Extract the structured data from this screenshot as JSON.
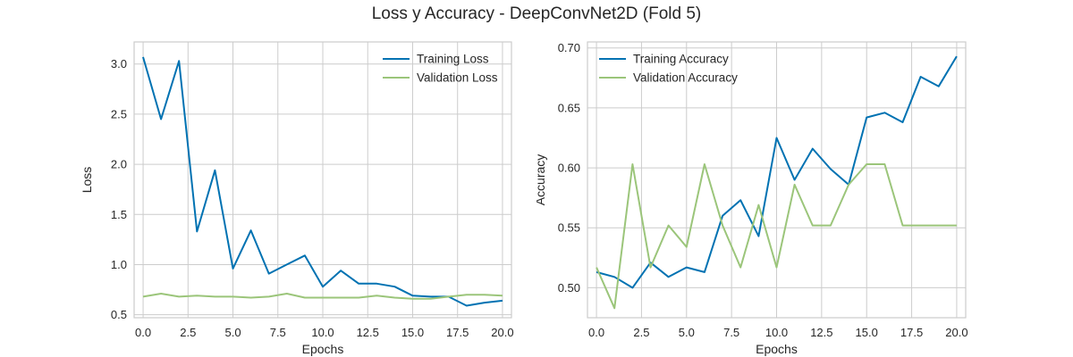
{
  "figure": {
    "title": "Loss y Accuracy - DeepConvNet2D (Fold 5)"
  },
  "colors": {
    "training": "#0072B2",
    "validation": "#9BC57A",
    "grid": "#cccccc",
    "frame": "#cccccc",
    "text": "#262626"
  },
  "chart_data": [
    {
      "type": "line",
      "xlabel": "Epochs",
      "ylabel": "Loss",
      "xlim": [
        -0.5,
        20.5
      ],
      "ylim": [
        0.47,
        3.22
      ],
      "xticks": [
        0,
        2.5,
        5,
        7.5,
        10,
        12.5,
        15,
        17.5,
        20
      ],
      "xtick_labels": [
        "0.0",
        "2.5",
        "5.0",
        "7.5",
        "10.0",
        "12.5",
        "15.0",
        "17.5",
        "20.0"
      ],
      "yticks": [
        0.5,
        1.0,
        1.5,
        2.0,
        2.5,
        3.0
      ],
      "ytick_labels": [
        "0.5",
        "1.0",
        "1.5",
        "2.0",
        "2.5",
        "3.0"
      ],
      "grid": true,
      "legend": "upper right",
      "x": [
        0,
        1,
        2,
        3,
        4,
        5,
        6,
        7,
        8,
        9,
        10,
        11,
        12,
        13,
        14,
        15,
        16,
        17,
        18,
        19,
        20
      ],
      "series": [
        {
          "name": "Training Loss",
          "color": "#0072B2",
          "values": [
            3.07,
            2.45,
            3.03,
            1.33,
            1.94,
            0.96,
            1.34,
            0.91,
            1.0,
            1.09,
            0.78,
            0.94,
            0.81,
            0.81,
            0.78,
            0.69,
            0.68,
            0.68,
            0.59,
            0.62,
            0.64
          ]
        },
        {
          "name": "Validation Loss",
          "color": "#9BC57A",
          "values": [
            0.68,
            0.71,
            0.68,
            0.69,
            0.68,
            0.68,
            0.67,
            0.68,
            0.71,
            0.67,
            0.67,
            0.67,
            0.67,
            0.69,
            0.67,
            0.66,
            0.66,
            0.68,
            0.7,
            0.7,
            0.69
          ]
        }
      ]
    },
    {
      "type": "line",
      "xlabel": "Epochs",
      "ylabel": "Accuracy",
      "xlim": [
        -0.5,
        20.5
      ],
      "ylim": [
        0.475,
        0.705
      ],
      "xticks": [
        0,
        2.5,
        5,
        7.5,
        10,
        12.5,
        15,
        17.5,
        20
      ],
      "xtick_labels": [
        "0.0",
        "2.5",
        "5.0",
        "7.5",
        "10.0",
        "12.5",
        "15.0",
        "17.5",
        "20.0"
      ],
      "yticks": [
        0.5,
        0.55,
        0.6,
        0.65,
        0.7
      ],
      "ytick_labels": [
        "0.50",
        "0.55",
        "0.60",
        "0.65",
        "0.70"
      ],
      "grid": true,
      "legend": "upper left",
      "x": [
        0,
        1,
        2,
        3,
        4,
        5,
        6,
        7,
        8,
        9,
        10,
        11,
        12,
        13,
        14,
        15,
        16,
        17,
        18,
        19,
        20
      ],
      "series": [
        {
          "name": "Training Accuracy",
          "color": "#0072B2",
          "values": [
            0.513,
            0.509,
            0.5,
            0.521,
            0.509,
            0.517,
            0.513,
            0.56,
            0.573,
            0.543,
            0.625,
            0.59,
            0.616,
            0.599,
            0.586,
            0.642,
            0.646,
            0.638,
            0.676,
            0.668,
            0.693
          ]
        },
        {
          "name": "Validation Accuracy",
          "color": "#9BC57A",
          "values": [
            0.517,
            0.483,
            0.603,
            0.517,
            0.552,
            0.534,
            0.603,
            0.552,
            0.517,
            0.569,
            0.517,
            0.586,
            0.552,
            0.552,
            0.586,
            0.603,
            0.603,
            0.552,
            0.552,
            0.552,
            0.552
          ]
        }
      ]
    }
  ]
}
